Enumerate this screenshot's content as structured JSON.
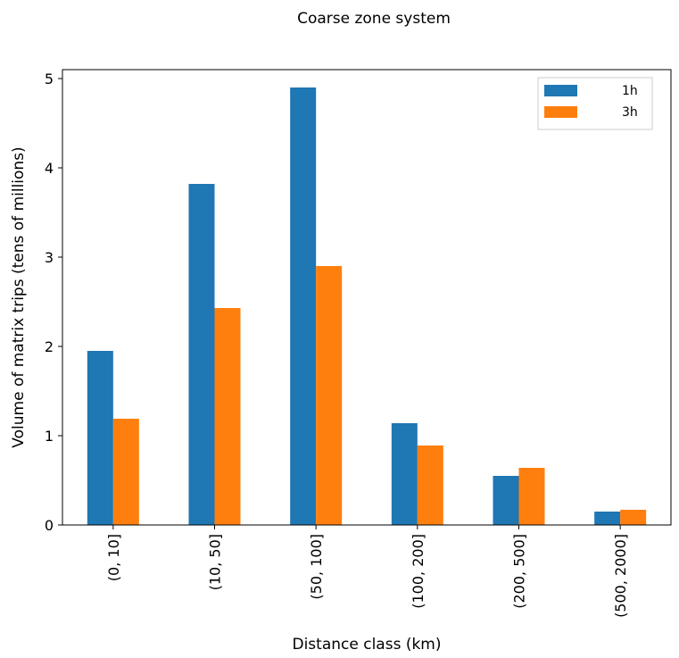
{
  "chart_data": {
    "type": "bar",
    "title": "Coarse zone system",
    "xlabel": "Distance class (km)",
    "ylabel": "Volume of matrix trips (tens of millions)",
    "categories": [
      "(0, 10]",
      "(10, 50]",
      "(50, 100]",
      "(100, 200]",
      "(200, 500]",
      "(500, 2000]"
    ],
    "series": [
      {
        "name": "1h",
        "color": "#1f77b4",
        "values": [
          1.95,
          3.82,
          4.9,
          1.14,
          0.55,
          0.15
        ]
      },
      {
        "name": "3h",
        "color": "#ff7f0e",
        "values": [
          1.19,
          2.43,
          2.9,
          0.89,
          0.64,
          0.17
        ]
      }
    ],
    "ylim": [
      0,
      5.1
    ],
    "yticks": [
      0,
      1,
      2,
      3,
      4,
      5
    ],
    "grid": false,
    "legend_position": "top-right"
  }
}
